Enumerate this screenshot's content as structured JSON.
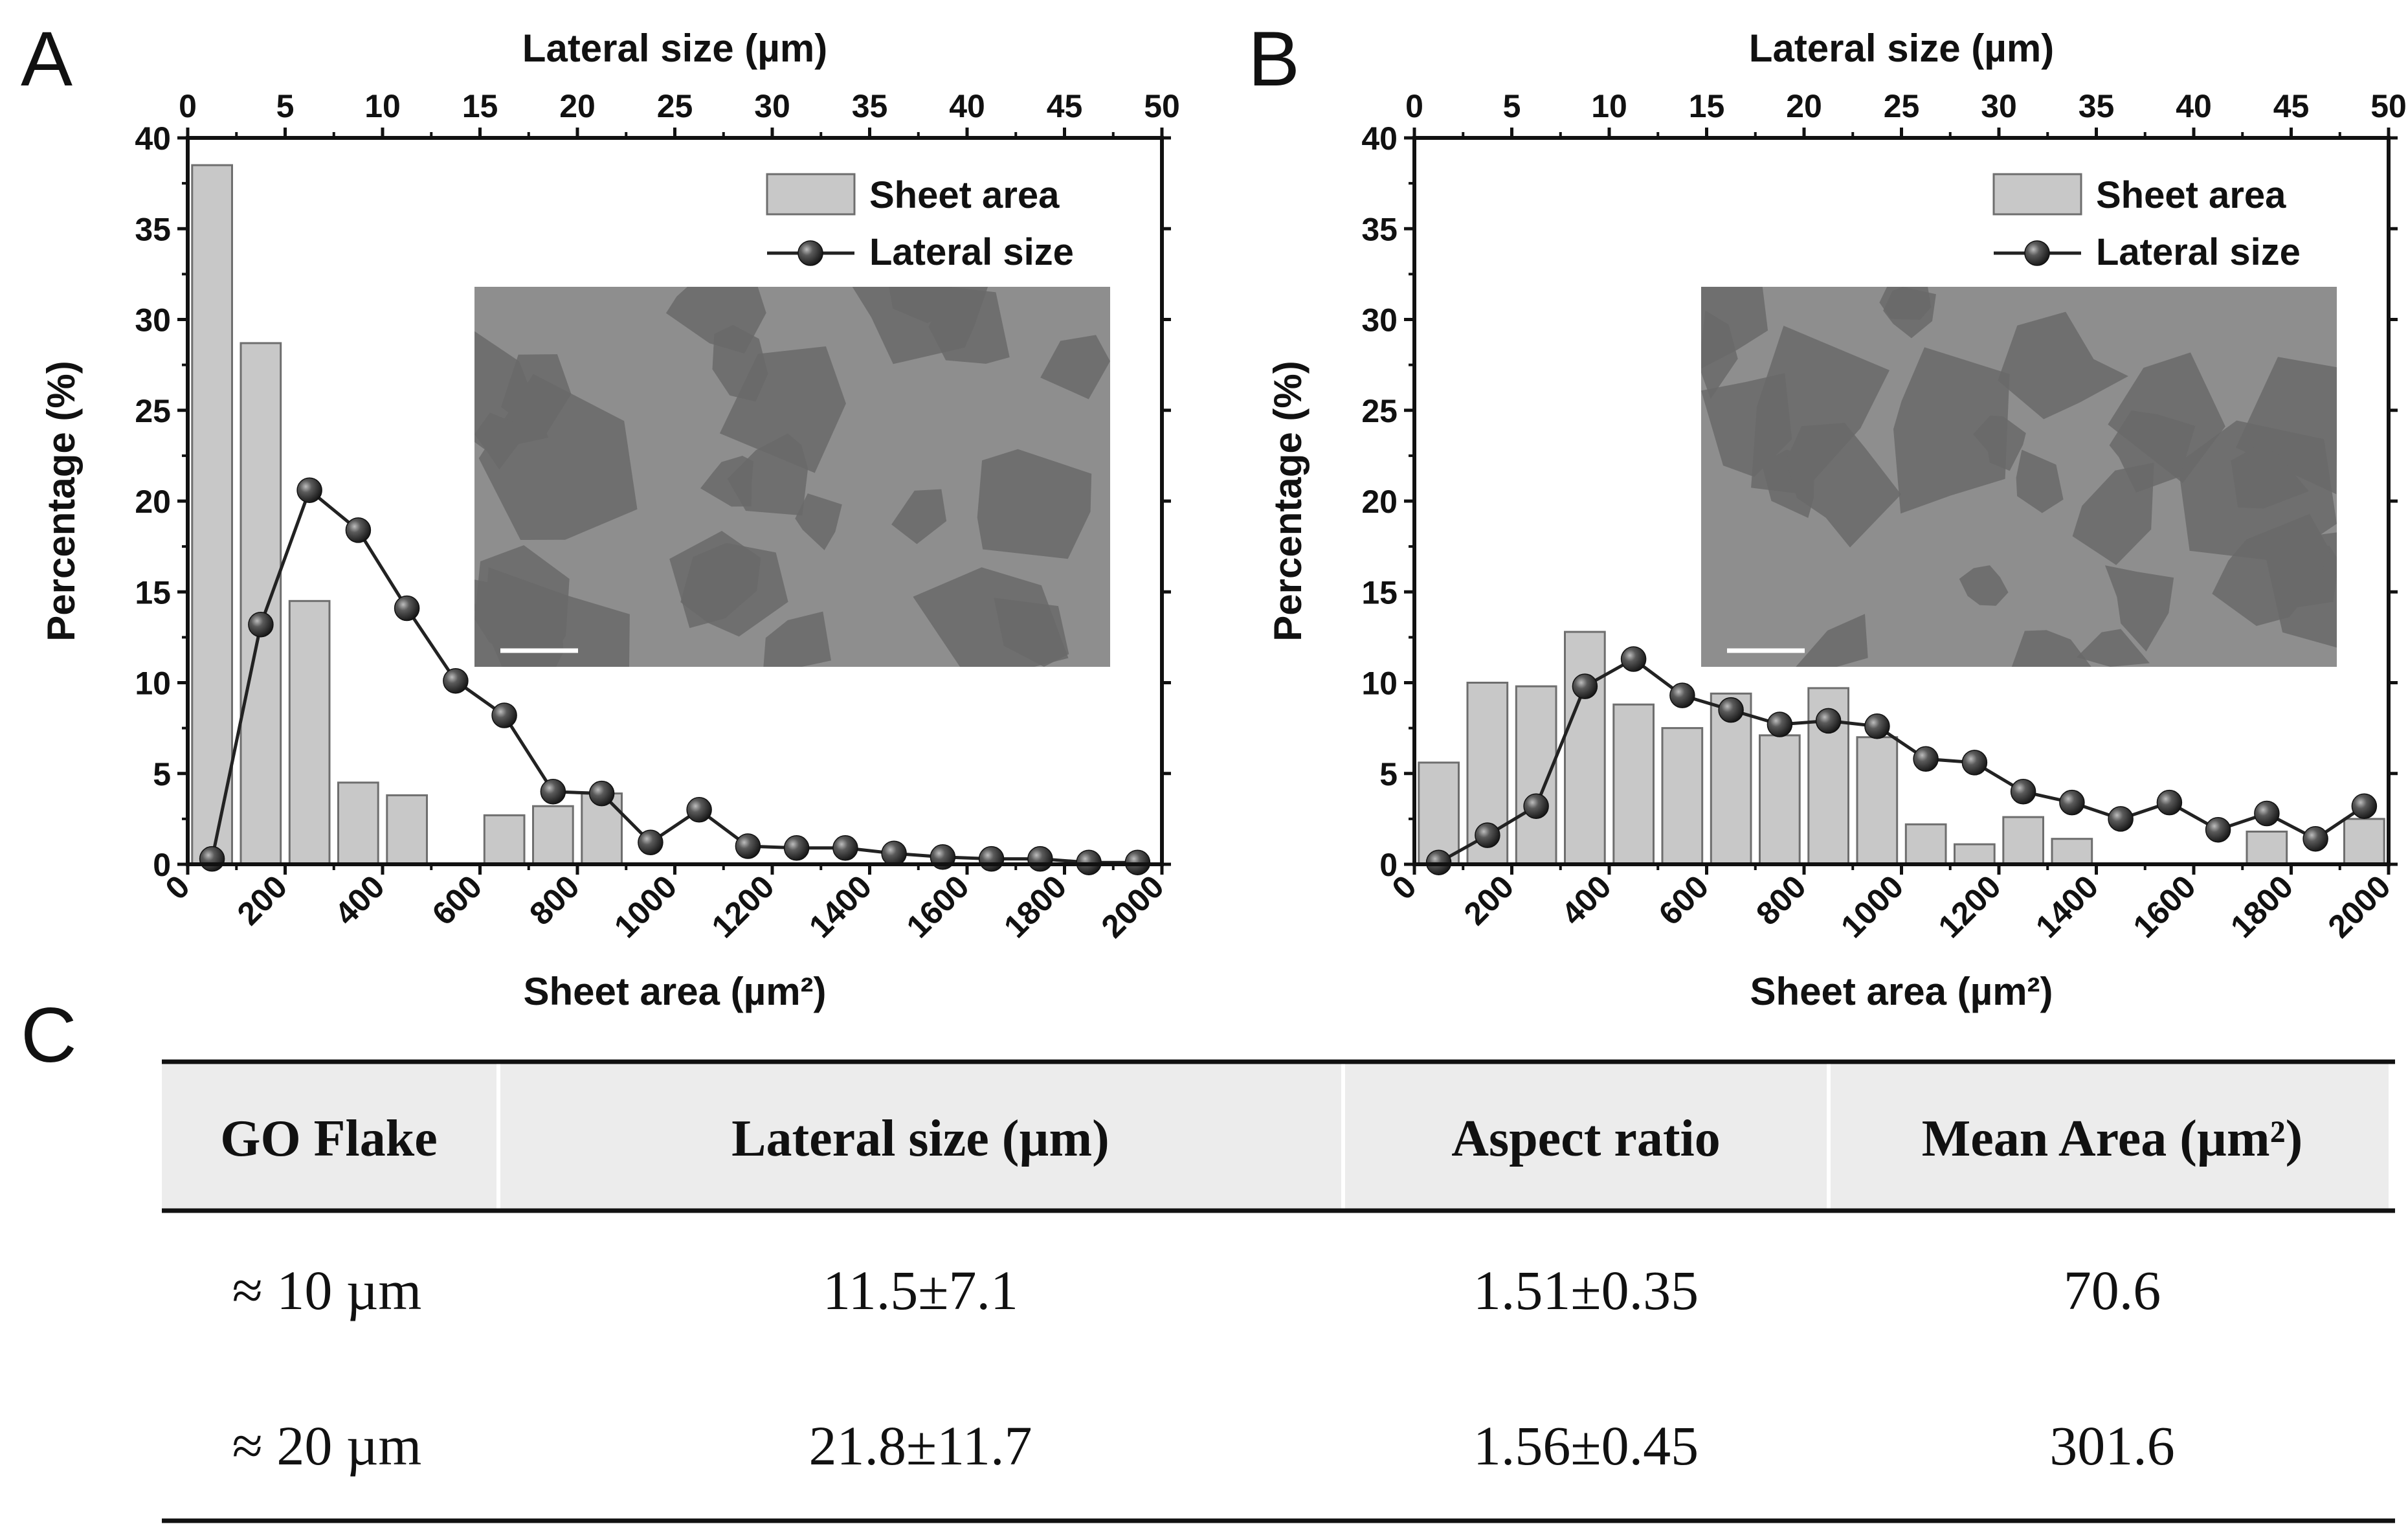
{
  "chart_data": [
    {
      "panel": "A",
      "type": "bar",
      "title": "",
      "xlabel": "Sheet area (µm²)",
      "x2label": "Lateral size (µm)",
      "ylabel": "Percentage (%)",
      "xlim": [
        0,
        2000
      ],
      "x2lim": [
        0,
        50
      ],
      "ylim": [
        0,
        40
      ],
      "xticks": [
        0,
        200,
        400,
        600,
        800,
        1000,
        1200,
        1400,
        1600,
        1800,
        2000
      ],
      "x2ticks": [
        0,
        5,
        10,
        15,
        20,
        25,
        30,
        35,
        40,
        45,
        50
      ],
      "yticks": [
        0,
        5,
        10,
        15,
        20,
        25,
        30,
        35,
        40
      ],
      "legend": [
        "Sheet area",
        "Lateral size"
      ],
      "legend_position": "top-right",
      "inset": "micrograph with scale bar",
      "series": [
        {
          "name": "Sheet area",
          "kind": "bar",
          "x": [
            50,
            150,
            250,
            350,
            450,
            650,
            750,
            850
          ],
          "values": [
            38.5,
            28.7,
            14.5,
            4.5,
            3.8,
            2.7,
            3.2,
            3.9
          ]
        },
        {
          "name": "Lateral size",
          "kind": "line",
          "x": [
            1.25,
            3.75,
            6.25,
            8.75,
            11.25,
            13.75,
            16.25,
            18.75,
            21.25,
            23.75,
            26.25,
            28.75,
            31.25,
            33.75,
            36.25,
            38.75,
            41.25,
            43.75,
            46.25,
            48.75
          ],
          "values": [
            0.3,
            13.2,
            20.6,
            18.4,
            14.1,
            10.1,
            8.2,
            4.0,
            3.9,
            1.2,
            3.0,
            1.0,
            0.9,
            0.9,
            0.6,
            0.4,
            0.3,
            0.3,
            0.1,
            0.1
          ]
        }
      ]
    },
    {
      "panel": "B",
      "type": "bar",
      "title": "",
      "xlabel": "Sheet area (µm²)",
      "x2label": "Lateral size (µm)",
      "ylabel": "Percentage (%)",
      "xlim": [
        0,
        2000
      ],
      "x2lim": [
        0,
        50
      ],
      "ylim": [
        0,
        40
      ],
      "xticks": [
        0,
        200,
        400,
        600,
        800,
        1000,
        1200,
        1400,
        1600,
        1800,
        2000
      ],
      "x2ticks": [
        0,
        5,
        10,
        15,
        20,
        25,
        30,
        35,
        40,
        45,
        50
      ],
      "yticks": [
        0,
        5,
        10,
        15,
        20,
        25,
        30,
        35,
        40
      ],
      "legend": [
        "Sheet area",
        "Lateral size"
      ],
      "legend_position": "top-right",
      "inset": "micrograph with scale bar",
      "series": [
        {
          "name": "Sheet area",
          "kind": "bar",
          "x": [
            50,
            150,
            250,
            350,
            450,
            550,
            650,
            750,
            850,
            950,
            1050,
            1150,
            1250,
            1350,
            1750,
            1950
          ],
          "values": [
            5.6,
            10.0,
            9.8,
            12.8,
            8.8,
            7.5,
            9.4,
            7.1,
            9.7,
            7.0,
            2.2,
            1.1,
            2.6,
            1.4,
            1.8,
            2.5
          ]
        },
        {
          "name": "Lateral size",
          "kind": "line",
          "x": [
            1.25,
            3.75,
            6.25,
            8.75,
            11.25,
            13.75,
            16.25,
            18.75,
            21.25,
            23.75,
            26.25,
            28.75,
            31.25,
            33.75,
            36.25,
            38.75,
            41.25,
            43.75,
            46.25,
            48.75
          ],
          "values": [
            0.1,
            1.6,
            3.2,
            9.8,
            11.3,
            9.3,
            8.5,
            7.7,
            7.9,
            7.6,
            5.8,
            5.6,
            4.0,
            3.4,
            2.5,
            3.4,
            1.9,
            2.8,
            1.4,
            3.2
          ]
        }
      ]
    }
  ],
  "panels": {
    "A": "A",
    "B": "B",
    "C": "C"
  },
  "table": {
    "headers": [
      "GO Flake",
      "Lateral size (µm)",
      "Aspect ratio",
      "Mean Area (µm²)"
    ],
    "rows": [
      [
        "≈ 10 µm",
        "11.5±7.1",
        "1.51±0.35",
        "70.6"
      ],
      [
        "≈ 20 µm",
        "21.8±11.7",
        "1.56±0.45",
        "301.6"
      ]
    ]
  },
  "colors": {
    "bar_fill": "#c8c8c8",
    "bar_stroke": "#6e6e6e",
    "line": "#222222",
    "marker": "#3a3a3a",
    "inset_bg": "#8e8e8e",
    "inset_flake": "#6a6a6a",
    "header_bg": "#ececec"
  }
}
